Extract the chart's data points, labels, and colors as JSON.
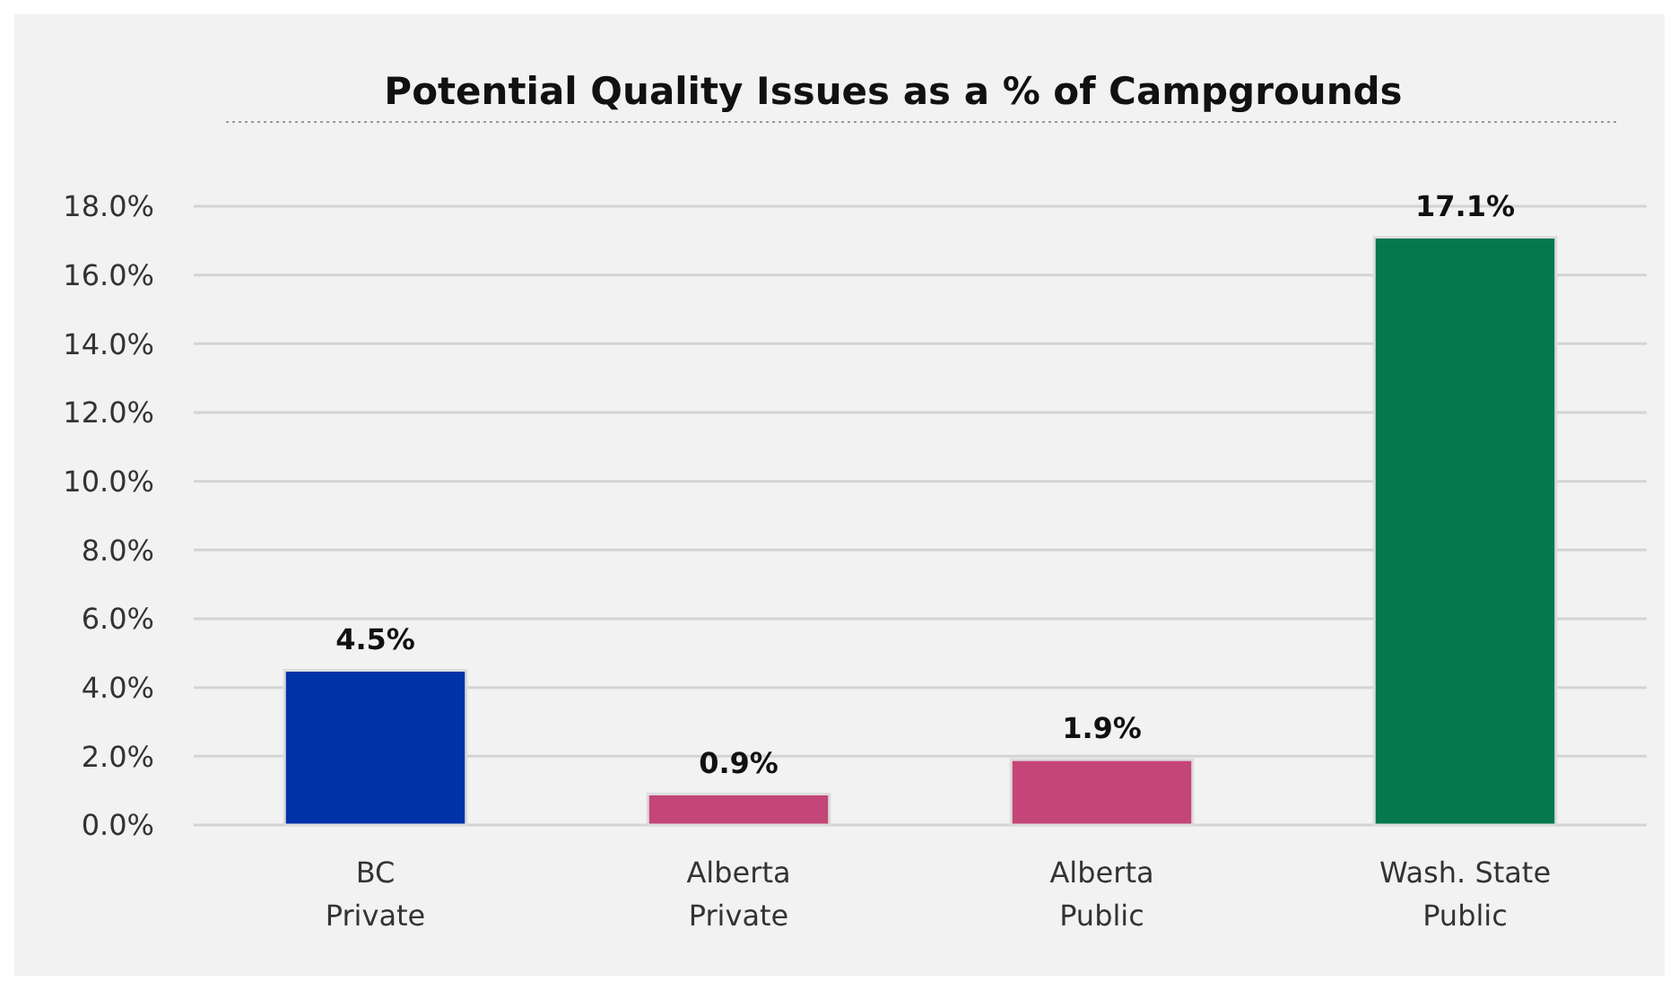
{
  "chart_data": {
    "type": "bar",
    "title": "Potential Quality Issues as a % of Campgrounds",
    "categories": [
      "BC\nPrivate",
      "Alberta\nPrivate",
      "Alberta\nPublic",
      "Wash. State\nPublic"
    ],
    "values": [
      4.5,
      0.9,
      1.9,
      17.1
    ],
    "colors": [
      "#0033a8",
      "#c44577",
      "#c44577",
      "#06784f"
    ],
    "ylim": [
      0,
      18
    ],
    "yticks": [
      {
        "value": 0,
        "label": "0.0%"
      },
      {
        "value": 2,
        "label": "2.0%"
      },
      {
        "value": 4,
        "label": "4.0%"
      },
      {
        "value": 6,
        "label": "6.0%"
      },
      {
        "value": 8,
        "label": "8.0%"
      },
      {
        "value": 10,
        "label": "10.0%"
      },
      {
        "value": 12,
        "label": "12.0%"
      },
      {
        "value": 14,
        "label": "14.0%"
      },
      {
        "value": 16,
        "label": "16.0%"
      },
      {
        "value": 18,
        "label": "18.0%"
      }
    ],
    "value_labels": [
      "4.5%",
      "0.9%",
      "1.9%",
      "17.1%"
    ],
    "grid": "y"
  }
}
